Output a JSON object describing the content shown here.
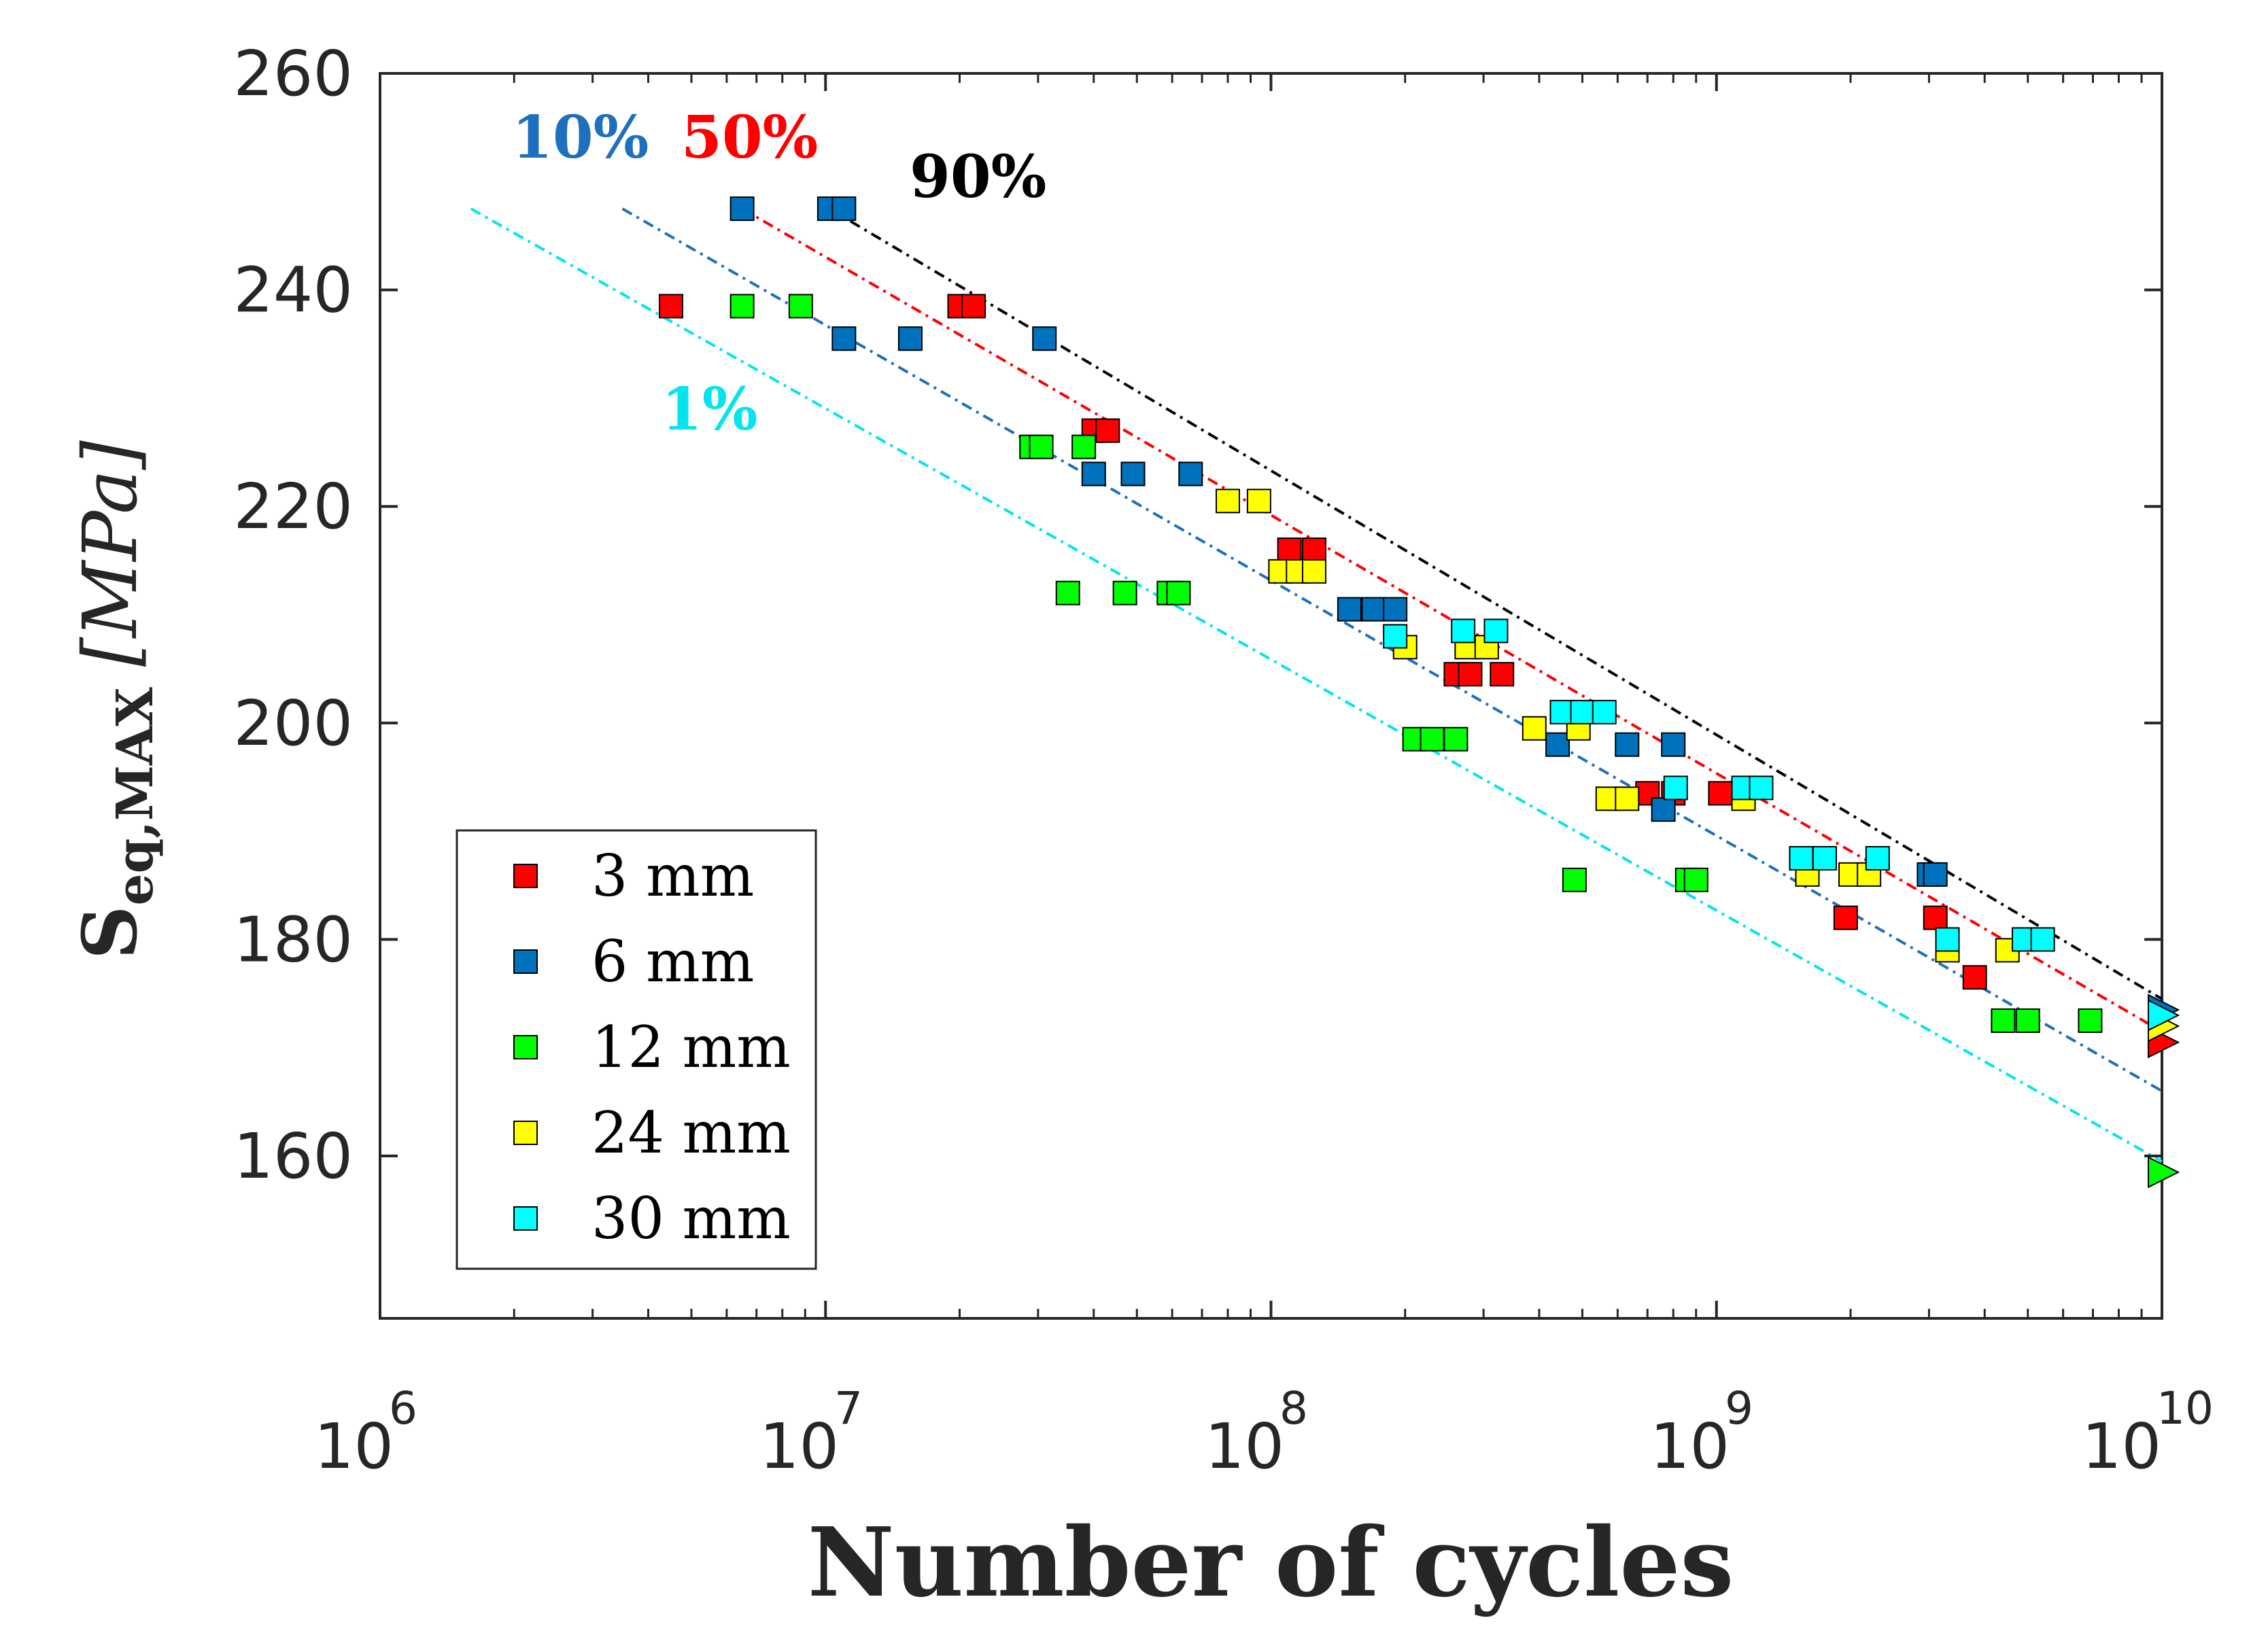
{
  "chart_data": {
    "type": "scatter",
    "title": "",
    "xlabel": "Number of cycles",
    "ylabel": {
      "main": "S",
      "subscript": "eq,MAX",
      "unit": "[MPa]"
    },
    "xscale": "log",
    "xlim": [
      1000000,
      10000000000
    ],
    "ylim": [
      145,
      260
    ],
    "grid": false,
    "x_ticks": [
      {
        "base": "10",
        "exp": "6"
      },
      {
        "base": "10",
        "exp": "7"
      },
      {
        "base": "10",
        "exp": "8"
      },
      {
        "base": "10",
        "exp": "9"
      },
      {
        "base": "10",
        "exp": "10"
      }
    ],
    "y_ticks": [
      "160",
      "180",
      "200",
      "220",
      "240",
      "260"
    ],
    "y_tick_values": [
      160,
      180,
      200,
      220,
      240,
      260
    ],
    "legend_position": "bottom-left",
    "series": [
      {
        "name": "3 mm",
        "color": "#ff0000",
        "marker": "square",
        "points": [
          [
            4500000.0,
            238.5
          ],
          [
            20000000.0,
            238.5
          ],
          [
            21500000.0,
            238.5
          ],
          [
            40000000.0,
            227
          ],
          [
            43000000.0,
            227
          ],
          [
            110000000.0,
            216
          ],
          [
            125000000.0,
            216
          ],
          [
            260000000.0,
            204.5
          ],
          [
            280000000.0,
            204.5
          ],
          [
            330000000.0,
            204.5
          ],
          [
            700000000.0,
            193.5
          ],
          [
            800000000.0,
            193.5
          ],
          [
            1020000000.0,
            193.5
          ],
          [
            1950000000.0,
            182
          ],
          [
            3100000000.0,
            182
          ],
          [
            3800000000.0,
            176.5
          ]
        ],
        "runouts": [
          [
            10000000000.0,
            170.5
          ]
        ]
      },
      {
        "name": "6 mm",
        "color": "#0072bd",
        "marker": "square",
        "points": [
          [
            6500000.0,
            247.5
          ],
          [
            10200000.0,
            247.5
          ],
          [
            11000000.0,
            247.5
          ],
          [
            11000000.0,
            235.5
          ],
          [
            15500000.0,
            235.5
          ],
          [
            31000000.0,
            235.5
          ],
          [
            40000000.0,
            223
          ],
          [
            49000000.0,
            223
          ],
          [
            66000000.0,
            223
          ],
          [
            150000000.0,
            210.5
          ],
          [
            170000000.0,
            210.5
          ],
          [
            190000000.0,
            210.5
          ],
          [
            440000000.0,
            198
          ],
          [
            630000000.0,
            198
          ],
          [
            800000000.0,
            198
          ],
          [
            760000000.0,
            192
          ],
          [
            3000000000.0,
            186
          ],
          [
            3100000000.0,
            186
          ]
        ],
        "runouts": [
          [
            10000000000.0,
            173.5
          ]
        ]
      },
      {
        "name": "12 mm",
        "color": "#00ff00",
        "marker": "square",
        "points": [
          [
            6500000.0,
            238.5
          ],
          [
            8800000.0,
            238.5
          ],
          [
            29000000.0,
            225.5
          ],
          [
            30500000.0,
            225.5
          ],
          [
            38000000.0,
            225.5
          ],
          [
            35000000.0,
            212
          ],
          [
            47000000.0,
            212
          ],
          [
            59000000.0,
            212
          ],
          [
            62000000.0,
            212
          ],
          [
            210000000.0,
            198.5
          ],
          [
            230000000.0,
            198.5
          ],
          [
            260000000.0,
            198.5
          ],
          [
            480000000.0,
            185.5
          ],
          [
            860000000.0,
            185.5
          ],
          [
            900000000.0,
            185.5
          ],
          [
            4400000000.0,
            172.5
          ],
          [
            5000000000.0,
            172.5
          ],
          [
            6900000000.0,
            172.5
          ]
        ],
        "runouts": [
          [
            10000000000.0,
            158.5
          ]
        ]
      },
      {
        "name": "24 mm",
        "color": "#ffff00",
        "marker": "square",
        "points": [
          [
            80000000.0,
            220.5
          ],
          [
            94000000.0,
            220.5
          ],
          [
            105000000.0,
            214
          ],
          [
            115000000.0,
            214
          ],
          [
            125000000.0,
            214
          ],
          [
            200000000.0,
            207
          ],
          [
            275000000.0,
            207
          ],
          [
            305000000.0,
            207
          ],
          [
            390000000.0,
            199.5
          ],
          [
            490000000.0,
            199.5
          ],
          [
            570000000.0,
            193
          ],
          [
            630000000.0,
            193
          ],
          [
            1150000000.0,
            193
          ],
          [
            1600000000.0,
            186
          ],
          [
            2000000000.0,
            186
          ],
          [
            2200000000.0,
            186
          ],
          [
            3300000000.0,
            179
          ],
          [
            4500000000.0,
            179
          ]
        ],
        "runouts": [
          [
            10000000000.0,
            172
          ]
        ]
      },
      {
        "name": "30 mm",
        "color": "#00ffff",
        "marker": "square",
        "points": [
          [
            190000000.0,
            208
          ],
          [
            270000000.0,
            208.5
          ],
          [
            320000000.0,
            208.5
          ],
          [
            450000000.0,
            201
          ],
          [
            500000000.0,
            201
          ],
          [
            560000000.0,
            201
          ],
          [
            810000000.0,
            194
          ],
          [
            1150000000.0,
            194
          ],
          [
            1260000000.0,
            194
          ],
          [
            1550000000.0,
            187.5
          ],
          [
            1750000000.0,
            187.5
          ],
          [
            2300000000.0,
            187.5
          ],
          [
            3300000000.0,
            180
          ],
          [
            4900000000.0,
            180
          ],
          [
            5400000000.0,
            180
          ]
        ],
        "runouts": [
          [
            10000000000.0,
            173
          ]
        ]
      }
    ],
    "trend_lines": [
      {
        "name": "1%",
        "color": "#00e5ee",
        "x": [
          1600000.0,
          10000000000.0
        ],
        "y": [
          247.5,
          159.5
        ]
      },
      {
        "name": "10%",
        "color": "#1f6fbf",
        "x": [
          3500000.0,
          10000000000.0
        ],
        "y": [
          247.5,
          166
        ]
      },
      {
        "name": "50%",
        "color": "#ff0000",
        "x": [
          6500000.0,
          10000000000.0
        ],
        "y": [
          247.5,
          171.5
        ]
      },
      {
        "name": "90%",
        "color": "#000000",
        "x": [
          10200000.0,
          10000000000.0
        ],
        "y": [
          247.5,
          174.5
        ]
      }
    ],
    "annotations": [
      {
        "text": "10%",
        "color": "#1f6fbf"
      },
      {
        "text": "50%",
        "color": "#ff0000"
      },
      {
        "text": "90%",
        "color": "#000000"
      },
      {
        "text": "1%",
        "color": "#00e5ee"
      }
    ]
  }
}
